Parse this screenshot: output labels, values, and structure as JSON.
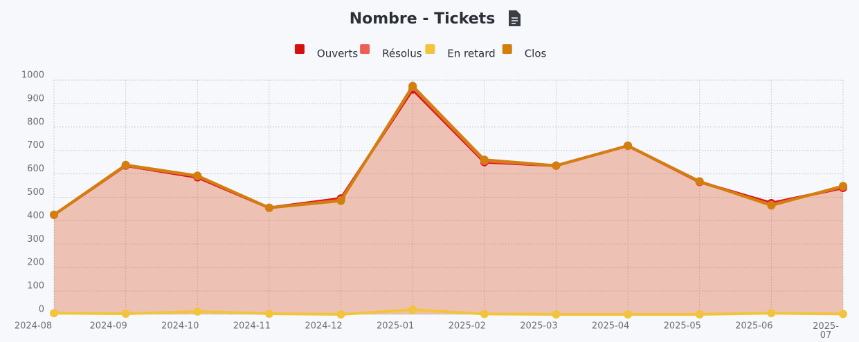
{
  "chart_data": {
    "type": "line",
    "title": "Nombre - Tickets",
    "categories": [
      "2024-08",
      "2024-09",
      "2024-10",
      "2024-11",
      "2024-12",
      "2025-01",
      "2025-02",
      "2025-03",
      "2025-04",
      "2025-05",
      "2025-06",
      "2025-07"
    ],
    "series": [
      {
        "name": "Ouverts",
        "color": "#d80f0f",
        "values": [
          425,
          635,
          585,
          455,
          495,
          960,
          650,
          635,
          720,
          565,
          475,
          540
        ]
      },
      {
        "name": "Résolus",
        "color": "#ee6055",
        "values": [
          425,
          636,
          590,
          455,
          488,
          970,
          655,
          635,
          720,
          566,
          468,
          545
        ]
      },
      {
        "name": "En retard",
        "color": "#f2c43c",
        "values": [
          5,
          3,
          12,
          3,
          0,
          20,
          2,
          0,
          0,
          0,
          5,
          2
        ]
      },
      {
        "name": "Clos",
        "color": "#d27f0c",
        "values": [
          425,
          638,
          592,
          455,
          485,
          975,
          660,
          635,
          720,
          568,
          465,
          548
        ]
      }
    ],
    "ylim": [
      0,
      1000
    ],
    "yticks": [
      0,
      100,
      200,
      300,
      400,
      500,
      600,
      700,
      800,
      900,
      1000
    ],
    "grid": true,
    "legend": "top"
  }
}
